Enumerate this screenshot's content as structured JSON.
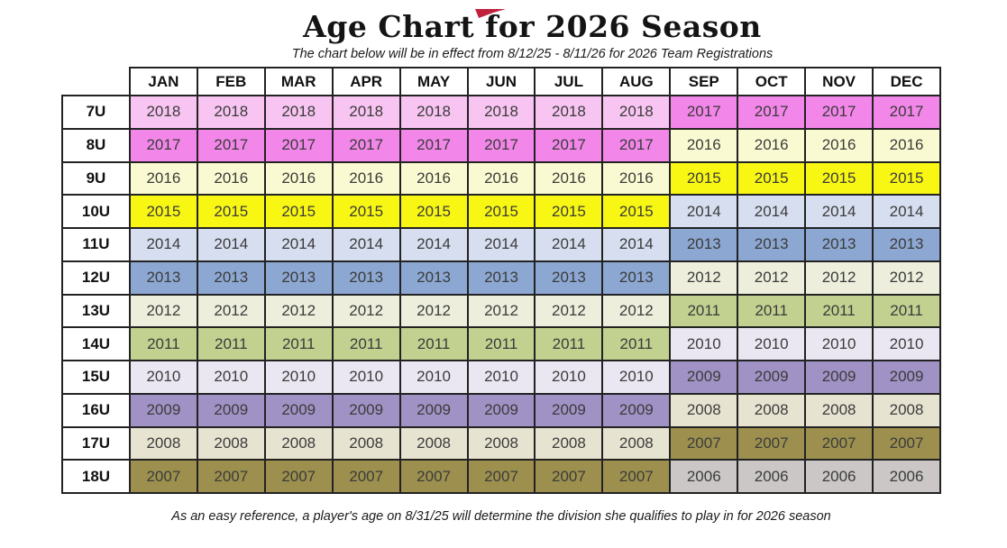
{
  "page": {
    "title": "Age Chart for 2026 Season",
    "subtitle": "The chart below will be in effect from 8/12/25 - 8/11/26 for 2026 Team Registrations",
    "footnote": "As an easy reference, a player's age on 8/31/25 will determine the division she qualifies to play in for 2026 season",
    "logo_color": "#c0223e"
  },
  "chart_data": {
    "type": "table",
    "title": "Age Chart for 2026 Season",
    "columns": [
      "JAN",
      "FEB",
      "MAR",
      "APR",
      "MAY",
      "JUN",
      "JUL",
      "AUG",
      "SEP",
      "OCT",
      "NOV",
      "DEC"
    ],
    "rows": [
      {
        "division": "7U",
        "years": [
          "2018",
          "2018",
          "2018",
          "2018",
          "2018",
          "2018",
          "2018",
          "2018",
          "2017",
          "2017",
          "2017",
          "2017"
        ]
      },
      {
        "division": "8U",
        "years": [
          "2017",
          "2017",
          "2017",
          "2017",
          "2017",
          "2017",
          "2017",
          "2017",
          "2016",
          "2016",
          "2016",
          "2016"
        ]
      },
      {
        "division": "9U",
        "years": [
          "2016",
          "2016",
          "2016",
          "2016",
          "2016",
          "2016",
          "2016",
          "2016",
          "2015",
          "2015",
          "2015",
          "2015"
        ]
      },
      {
        "division": "10U",
        "years": [
          "2015",
          "2015",
          "2015",
          "2015",
          "2015",
          "2015",
          "2015",
          "2015",
          "2014",
          "2014",
          "2014",
          "2014"
        ]
      },
      {
        "division": "11U",
        "years": [
          "2014",
          "2014",
          "2014",
          "2014",
          "2014",
          "2014",
          "2014",
          "2014",
          "2013",
          "2013",
          "2013",
          "2013"
        ]
      },
      {
        "division": "12U",
        "years": [
          "2013",
          "2013",
          "2013",
          "2013",
          "2013",
          "2013",
          "2013",
          "2013",
          "2012",
          "2012",
          "2012",
          "2012"
        ]
      },
      {
        "division": "13U",
        "years": [
          "2012",
          "2012",
          "2012",
          "2012",
          "2012",
          "2012",
          "2012",
          "2012",
          "2011",
          "2011",
          "2011",
          "2011"
        ]
      },
      {
        "division": "14U",
        "years": [
          "2011",
          "2011",
          "2011",
          "2011",
          "2011",
          "2011",
          "2011",
          "2011",
          "2010",
          "2010",
          "2010",
          "2010"
        ]
      },
      {
        "division": "15U",
        "years": [
          "2010",
          "2010",
          "2010",
          "2010",
          "2010",
          "2010",
          "2010",
          "2010",
          "2009",
          "2009",
          "2009",
          "2009"
        ]
      },
      {
        "division": "16U",
        "years": [
          "2009",
          "2009",
          "2009",
          "2009",
          "2009",
          "2009",
          "2009",
          "2009",
          "2008",
          "2008",
          "2008",
          "2008"
        ]
      },
      {
        "division": "17U",
        "years": [
          "2008",
          "2008",
          "2008",
          "2008",
          "2008",
          "2008",
          "2008",
          "2008",
          "2007",
          "2007",
          "2007",
          "2007"
        ]
      },
      {
        "division": "18U",
        "years": [
          "2007",
          "2007",
          "2007",
          "2007",
          "2007",
          "2007",
          "2007",
          "2007",
          "2006",
          "2006",
          "2006",
          "2006"
        ]
      }
    ],
    "year_colors": {
      "2018": "#f8c5f2",
      "2017": "#f287e9",
      "2016": "#fafad2",
      "2015": "#f8f714",
      "2014": "#d6def0",
      "2013": "#8ca8d2",
      "2012": "#edefdc",
      "2011": "#c2d190",
      "2010": "#ebe7f2",
      "2009": "#a092c4",
      "2008": "#e7e3d1",
      "2007": "#9d904e",
      "2006": "#cac7c6"
    }
  }
}
